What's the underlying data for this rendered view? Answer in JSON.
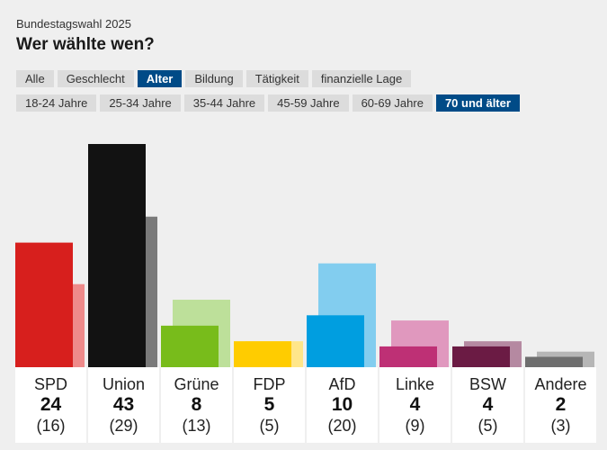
{
  "header": {
    "supertitle": "Bundestagswahl 2025",
    "title": "Wer wählte wen?"
  },
  "tabs": [
    {
      "label": "Alle",
      "active": false
    },
    {
      "label": "Geschlecht",
      "active": false
    },
    {
      "label": "Alter",
      "active": true
    },
    {
      "label": "Bildung",
      "active": false
    },
    {
      "label": "Tätigkeit",
      "active": false
    },
    {
      "label": "finanzielle Lage",
      "active": false
    }
  ],
  "subtabs": [
    {
      "label": "18-24 Jahre",
      "active": false
    },
    {
      "label": "25-34 Jahre",
      "active": false
    },
    {
      "label": "35-44 Jahre",
      "active": false
    },
    {
      "label": "45-59 Jahre",
      "active": false
    },
    {
      "label": "60-69 Jahre",
      "active": false
    },
    {
      "label": "70 und älter",
      "active": true
    }
  ],
  "colors": {
    "active_tab": "#004b87",
    "tab": "#dcdcdc",
    "background": "#efefef"
  },
  "chart_data": {
    "type": "bar",
    "categories": [
      "SPD",
      "Union",
      "Grüne",
      "FDP",
      "AfD",
      "Linke",
      "BSW",
      "Andere"
    ],
    "series": [
      {
        "values": [
          24,
          43,
          8,
          5,
          10,
          4,
          4,
          2
        ]
      },
      {
        "values": [
          16,
          29,
          13,
          5,
          20,
          9,
          5,
          3
        ]
      }
    ],
    "labels": [
      {
        "name": "SPD",
        "value": "24",
        "prev": "(16)"
      },
      {
        "name": "Union",
        "value": "43",
        "prev": "(29)"
      },
      {
        "name": "Grüne",
        "value": "8",
        "prev": "(13)"
      },
      {
        "name": "FDP",
        "value": "5",
        "prev": "(5)"
      },
      {
        "name": "AfD",
        "value": "10",
        "prev": "(20)"
      },
      {
        "name": "Linke",
        "value": "4",
        "prev": "(9)"
      },
      {
        "name": "BSW",
        "value": "4",
        "prev": "(5)"
      },
      {
        "name": "Andere",
        "value": "2",
        "prev": "(3)"
      }
    ],
    "party_colors": [
      "#d71f1d",
      "#121212",
      "#78bc1b",
      "#ffcc00",
      "#009ee0",
      "#be3075",
      "#6b1b44",
      "#6e6e6e"
    ],
    "prev_colors": [
      "#ee8a8a",
      "#7a7a7a",
      "#bde09a",
      "#ffe68a",
      "#82cdef",
      "#e098be",
      "#b589a1",
      "#b6b6b6"
    ],
    "ylim": [
      0,
      43
    ]
  }
}
